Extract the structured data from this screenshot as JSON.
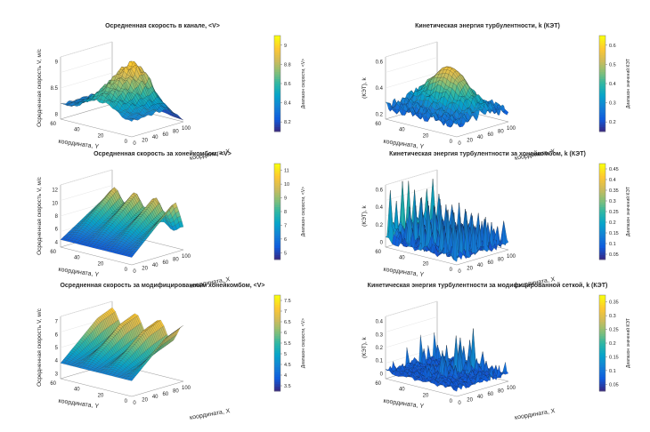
{
  "colors": {
    "colormap": [
      "#352a87",
      "#0f5cdd",
      "#1481d6",
      "#06a4ca",
      "#2eb7a4",
      "#87bf77",
      "#d1bb59",
      "#fec832",
      "#f9fb0e"
    ]
  },
  "chart_data": [
    {
      "type": "surface",
      "title": "Осредненная скорость в канале, <V>",
      "xlabel": "координата, X",
      "ylabel": "координата, Y",
      "zlabel": "Осредненная скорость V, м/с",
      "colorbar_label": "Диапазон скорости, <V>",
      "x_ticks": [
        "0",
        "20",
        "40",
        "60",
        "80",
        "100"
      ],
      "y_ticks": [
        "0",
        "20",
        "40",
        "60"
      ],
      "z_ticks": [
        "8",
        "8.5",
        "9"
      ],
      "colorbar_ticks": [
        "8.2",
        "8.4",
        "8.6",
        "8.8",
        "9"
      ],
      "zlim": [
        8,
        9.2
      ],
      "clim": [
        8.1,
        9.2
      ]
    },
    {
      "type": "surface",
      "title": "Кинетическая энергия турбулентности, k (КЭТ)",
      "xlabel": "координата, X",
      "ylabel": "координата, Y",
      "zlabel": "(КЭТ), k",
      "colorbar_label": "Диапазон значений КЭТ",
      "x_ticks": [
        "0",
        "20",
        "40",
        "60",
        "80",
        "100"
      ],
      "y_ticks": [
        "0",
        "20",
        "40",
        "60"
      ],
      "z_ticks": [
        "0.2",
        "0.4",
        "0.6"
      ],
      "colorbar_ticks": [
        "0.2",
        "0.3",
        "0.4",
        "0.5",
        "0.6"
      ],
      "zlim": [
        0.1,
        0.65
      ],
      "clim": [
        0.12,
        0.62
      ]
    },
    {
      "type": "surface",
      "title": "Осредненная скорость за хонейкомбом, <V>",
      "xlabel": "координата, X",
      "ylabel": "координата, Y",
      "zlabel": "Осредненная скорость V, м/с",
      "colorbar_label": "Диапазон скорости, <V>",
      "x_ticks": [
        "0",
        "20",
        "40",
        "60",
        "80",
        "100"
      ],
      "y_ticks": [
        "0",
        "20",
        "40",
        "60"
      ],
      "z_ticks": [
        "4",
        "6",
        "8",
        "10",
        "12"
      ],
      "colorbar_ticks": [
        "5",
        "6",
        "7",
        "8",
        "9",
        "10",
        "11"
      ],
      "zlim": [
        4,
        12
      ],
      "clim": [
        4.5,
        11.5
      ]
    },
    {
      "type": "surface",
      "title": "Кинетическая энергия турбулентности за хонейкомбом, k (КЭТ)",
      "xlabel": "координата, X",
      "ylabel": "координата, Y",
      "zlabel": "(КЭТ), k",
      "colorbar_label": "Диапазон значений КЭТ",
      "x_ticks": [
        "0",
        "20",
        "40",
        "60",
        "80",
        "100"
      ],
      "y_ticks": [
        "0",
        "20",
        "40",
        "60"
      ],
      "z_ticks": [
        "0",
        "0.2",
        "0.4",
        "0.6"
      ],
      "colorbar_ticks": [
        "0.05",
        "0.1",
        "0.15",
        "0.2",
        "0.25",
        "0.3",
        "0.35",
        "0.4",
        "0.45"
      ],
      "zlim": [
        0,
        0.6
      ],
      "clim": [
        0.03,
        0.48
      ]
    },
    {
      "type": "surface",
      "title": "Осредненная скорость за модифицированным хонейкомбом, <V>",
      "xlabel": "координата, X",
      "ylabel": "координата, Y",
      "zlabel": "Осредненная скорость V, м/с",
      "colorbar_label": "Диапазон скорости, <V>",
      "x_ticks": [
        "0",
        "20",
        "40",
        "60",
        "80",
        "100"
      ],
      "y_ticks": [
        "0",
        "20",
        "40",
        "60"
      ],
      "z_ticks": [
        "3",
        "4",
        "5",
        "6",
        "7"
      ],
      "colorbar_ticks": [
        "3.5",
        "4",
        "4.5",
        "5",
        "5.5",
        "6",
        "6.5",
        "7",
        "7.5"
      ],
      "zlim": [
        3,
        7.6
      ],
      "clim": [
        3.2,
        7.7
      ]
    },
    {
      "type": "surface",
      "title": "Кинетическая энергия турбулентности за модифицированной сеткой, k (КЭТ)",
      "xlabel": "координата, X",
      "ylabel": "координата, Y",
      "zlabel": "(КЭТ), k",
      "colorbar_label": "Диапазон значений КЭТ",
      "x_ticks": [
        "0",
        "20",
        "40",
        "60",
        "80",
        "100"
      ],
      "y_ticks": [
        "0",
        "20",
        "40",
        "60"
      ],
      "z_ticks": [
        "0",
        "0.1",
        "0.2",
        "0.3",
        "0.4"
      ],
      "colorbar_ticks": [
        "0.05",
        "0.1",
        "0.15",
        "0.2",
        "0.25",
        "0.3",
        "0.35"
      ],
      "zlim": [
        0,
        0.42
      ],
      "clim": [
        0.03,
        0.38
      ]
    }
  ]
}
